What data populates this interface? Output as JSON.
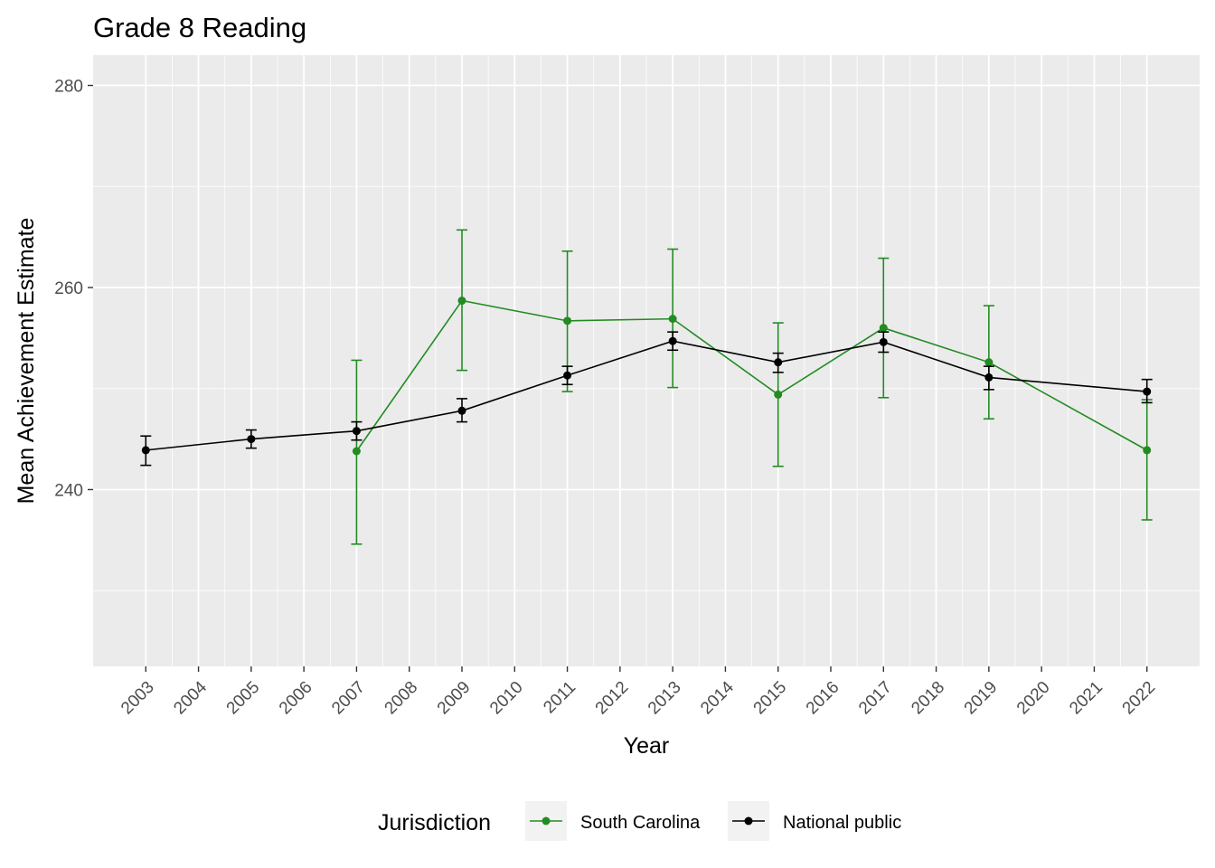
{
  "chart_data": {
    "type": "line",
    "title": "Grade 8 Reading",
    "xlabel": "Year",
    "ylabel": "Mean Achievement Estimate",
    "x_ticks": [
      "2003",
      "2004",
      "2005",
      "2006",
      "2007",
      "2008",
      "2009",
      "2010",
      "2011",
      "2012",
      "2013",
      "2014",
      "2015",
      "2016",
      "2017",
      "2018",
      "2019",
      "2020",
      "2021",
      "2022"
    ],
    "y_ticks": [
      240,
      260,
      280
    ],
    "xlim": [
      2002,
      2023
    ],
    "ylim": [
      222.5,
      283
    ],
    "grid": true,
    "legend": {
      "title": "Jurisdiction",
      "position": "bottom"
    },
    "series": [
      {
        "name": "South Carolina",
        "color": "#228B22",
        "points": [
          {
            "x": 2007,
            "y": 243.8,
            "lower": 234.6,
            "upper": 252.8
          },
          {
            "x": 2009,
            "y": 258.7,
            "lower": 251.8,
            "upper": 265.7
          },
          {
            "x": 2011,
            "y": 256.7,
            "lower": 249.7,
            "upper": 263.6
          },
          {
            "x": 2013,
            "y": 256.9,
            "lower": 250.1,
            "upper": 263.8
          },
          {
            "x": 2015,
            "y": 249.4,
            "lower": 242.3,
            "upper": 256.5
          },
          {
            "x": 2017,
            "y": 256.0,
            "lower": 249.1,
            "upper": 262.9
          },
          {
            "x": 2019,
            "y": 252.6,
            "lower": 247.0,
            "upper": 258.2
          },
          {
            "x": 2022,
            "y": 243.9,
            "lower": 237.0,
            "upper": 248.9
          }
        ]
      },
      {
        "name": "National public",
        "color": "#000000",
        "points": [
          {
            "x": 2003,
            "y": 243.9,
            "lower": 242.4,
            "upper": 245.3
          },
          {
            "x": 2005,
            "y": 245.0,
            "lower": 244.1,
            "upper": 245.9
          },
          {
            "x": 2007,
            "y": 245.8,
            "lower": 244.9,
            "upper": 246.7
          },
          {
            "x": 2009,
            "y": 247.8,
            "lower": 246.7,
            "upper": 249.0
          },
          {
            "x": 2011,
            "y": 251.3,
            "lower": 250.4,
            "upper": 252.2
          },
          {
            "x": 2013,
            "y": 254.7,
            "lower": 253.8,
            "upper": 255.6
          },
          {
            "x": 2015,
            "y": 252.6,
            "lower": 251.6,
            "upper": 253.5
          },
          {
            "x": 2017,
            "y": 254.6,
            "lower": 253.6,
            "upper": 255.6
          },
          {
            "x": 2019,
            "y": 251.1,
            "lower": 249.9,
            "upper": 252.2
          },
          {
            "x": 2022,
            "y": 249.7,
            "lower": 248.6,
            "upper": 250.9
          }
        ]
      }
    ]
  }
}
